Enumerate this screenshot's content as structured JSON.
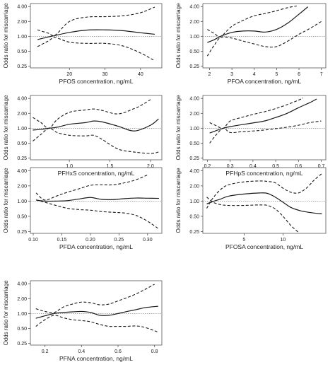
{
  "chart_data": [
    {
      "type": "line",
      "xlabel": "PFOS concentration, ng/mL",
      "ylabel": "Odds ratio for miscarriage",
      "xlim": [
        9,
        46
      ],
      "xticks": [
        20,
        30,
        40
      ],
      "ylim": [
        0.23,
        4.6
      ],
      "yticks": [
        0.25,
        0.5,
        1.0,
        2.0,
        4.0
      ],
      "y_scale": "log",
      "reference_y": 1.0,
      "series": [
        {
          "role": "estimate",
          "style": "solid",
          "x": [
            11,
            14,
            16,
            20,
            25,
            30,
            35,
            40,
            44
          ],
          "y": [
            0.86,
            0.97,
            1.04,
            1.2,
            1.34,
            1.35,
            1.3,
            1.18,
            1.1
          ]
        },
        {
          "role": "upper",
          "style": "dashed",
          "x": [
            11,
            14,
            16,
            20,
            25,
            30,
            35,
            40,
            44
          ],
          "y": [
            1.35,
            1.16,
            1.06,
            2.0,
            2.45,
            2.5,
            2.6,
            3.0,
            3.9
          ]
        },
        {
          "role": "lower",
          "style": "dashed",
          "x": [
            11,
            14,
            16,
            20,
            25,
            30,
            35,
            40,
            44
          ],
          "y": [
            0.62,
            0.8,
            0.94,
            0.76,
            0.72,
            0.72,
            0.64,
            0.46,
            0.32
          ]
        }
      ]
    },
    {
      "type": "line",
      "xlabel": "PFOA concentration, ng/mL",
      "ylabel": "Odds ratio for miscarriage",
      "xlim": [
        1.7,
        7.2
      ],
      "xticks": [
        2,
        3,
        4,
        5,
        6,
        7
      ],
      "ylim": [
        0.23,
        4.6
      ],
      "yticks": [
        0.25,
        0.5,
        1.0,
        2.0,
        4.0
      ],
      "y_scale": "log",
      "reference_y": 1.0,
      "series": [
        {
          "role": "estimate",
          "style": "solid",
          "x": [
            1.9,
            2.2,
            2.5,
            3.0,
            3.5,
            4.0,
            4.5,
            5.0,
            5.5,
            6.0,
            6.4
          ],
          "y": [
            0.75,
            0.85,
            1.0,
            1.2,
            1.28,
            1.28,
            1.22,
            1.38,
            1.85,
            2.8,
            3.95
          ]
        },
        {
          "role": "upper",
          "style": "dashed",
          "x": [
            1.9,
            2.2,
            2.5,
            3.0,
            3.5,
            4.0,
            4.5,
            5.0,
            5.5,
            5.9
          ],
          "y": [
            1.38,
            1.15,
            1.0,
            1.6,
            2.1,
            2.6,
            2.9,
            3.3,
            3.8,
            4.1
          ]
        },
        {
          "role": "lower",
          "style": "dashed",
          "x": [
            1.9,
            2.2,
            2.5,
            3.0,
            3.5,
            4.0,
            4.5,
            5.0,
            5.5,
            6.0,
            6.5,
            7.0
          ],
          "y": [
            0.4,
            0.65,
            0.95,
            0.92,
            0.8,
            0.7,
            0.62,
            0.62,
            0.8,
            1.1,
            1.45,
            2.0
          ]
        }
      ]
    },
    {
      "type": "line",
      "xlabel": "PFHxS concentration, ng/mL",
      "ylabel": "Odds ratio for miscarriage",
      "xlim": [
        0.52,
        2.14
      ],
      "xticks": [
        1.0,
        1.5,
        2.0
      ],
      "ylim": [
        0.23,
        4.6
      ],
      "yticks": [
        0.25,
        0.5,
        1.0,
        2.0,
        4.0
      ],
      "y_scale": "log",
      "reference_y": 1.0,
      "series": [
        {
          "role": "estimate",
          "style": "solid",
          "x": [
            0.55,
            0.65,
            0.75,
            0.85,
            1.0,
            1.2,
            1.3,
            1.4,
            1.6,
            1.8,
            2.0,
            2.1
          ],
          "y": [
            0.92,
            0.95,
            1.0,
            1.05,
            1.2,
            1.3,
            1.4,
            1.35,
            1.1,
            0.88,
            1.15,
            1.55
          ]
        },
        {
          "role": "upper",
          "style": "dashed",
          "x": [
            0.55,
            0.65,
            0.75,
            0.85,
            1.0,
            1.2,
            1.3,
            1.4,
            1.6,
            1.8,
            1.9,
            2.0
          ],
          "y": [
            1.65,
            1.3,
            1.0,
            1.5,
            2.1,
            2.35,
            2.45,
            2.3,
            1.95,
            2.5,
            3.0,
            3.8
          ]
        },
        {
          "role": "lower",
          "style": "dashed",
          "x": [
            0.55,
            0.65,
            0.75,
            0.85,
            1.0,
            1.2,
            1.3,
            1.4,
            1.6,
            1.8,
            2.0,
            2.1
          ],
          "y": [
            0.55,
            0.75,
            1.0,
            0.82,
            0.72,
            0.7,
            0.72,
            0.6,
            0.38,
            0.33,
            0.31,
            0.33
          ]
        }
      ]
    },
    {
      "type": "line",
      "xlabel": "PFHpS concentration, ng/mL",
      "ylabel": "Odds ratio for miscarriage",
      "xlim": [
        0.18,
        0.72
      ],
      "xticks": [
        0.2,
        0.3,
        0.4,
        0.5,
        0.6,
        0.7
      ],
      "ylim": [
        0.23,
        4.6
      ],
      "yticks": [
        0.25,
        0.5,
        1.0,
        2.0,
        4.0
      ],
      "y_scale": "log",
      "reference_y": 1.0,
      "series": [
        {
          "role": "estimate",
          "style": "solid",
          "x": [
            0.21,
            0.24,
            0.27,
            0.3,
            0.35,
            0.4,
            0.45,
            0.5,
            0.55,
            0.6,
            0.65,
            0.68
          ],
          "y": [
            0.8,
            0.9,
            1.0,
            1.08,
            1.18,
            1.28,
            1.4,
            1.65,
            2.0,
            2.6,
            3.3,
            3.9
          ]
        },
        {
          "role": "upper",
          "style": "dashed",
          "x": [
            0.21,
            0.24,
            0.27,
            0.3,
            0.35,
            0.4,
            0.45,
            0.5,
            0.55,
            0.6,
            0.62
          ],
          "y": [
            1.3,
            1.12,
            1.0,
            1.4,
            1.65,
            1.9,
            2.15,
            2.5,
            3.0,
            3.7,
            4.1
          ]
        },
        {
          "role": "lower",
          "style": "dashed",
          "x": [
            0.21,
            0.24,
            0.27,
            0.3,
            0.35,
            0.4,
            0.45,
            0.5,
            0.55,
            0.6,
            0.65,
            0.7
          ],
          "y": [
            0.5,
            0.75,
            1.0,
            0.82,
            0.85,
            0.88,
            0.92,
            0.98,
            1.05,
            1.15,
            1.3,
            1.4
          ]
        }
      ]
    },
    {
      "type": "line",
      "xlabel": "PFDA concentration, ng/mL",
      "ylabel": "Odds ratio for miscarriage",
      "xlim": [
        0.095,
        0.325
      ],
      "xticks": [
        0.1,
        0.15,
        0.2,
        0.25,
        0.3
      ],
      "ylim": [
        0.23,
        4.6
      ],
      "yticks": [
        0.25,
        0.5,
        1.0,
        2.0,
        4.0
      ],
      "y_scale": "log",
      "reference_y": 1.0,
      "series": [
        {
          "role": "estimate",
          "style": "solid",
          "x": [
            0.105,
            0.12,
            0.14,
            0.16,
            0.18,
            0.2,
            0.22,
            0.24,
            0.26,
            0.28,
            0.3,
            0.32
          ],
          "y": [
            1.05,
            1.0,
            1.0,
            1.02,
            1.1,
            1.18,
            1.08,
            1.07,
            1.12,
            1.15,
            1.14,
            1.13
          ]
        },
        {
          "role": "upper",
          "style": "dashed",
          "x": [
            0.105,
            0.12,
            0.14,
            0.16,
            0.18,
            0.2,
            0.22,
            0.24,
            0.26,
            0.28,
            0.3
          ],
          "y": [
            1.45,
            1.05,
            1.25,
            1.5,
            1.75,
            2.05,
            2.1,
            2.1,
            2.3,
            2.65,
            3.3
          ]
        },
        {
          "role": "lower",
          "style": "dashed",
          "x": [
            0.105,
            0.12,
            0.14,
            0.16,
            0.18,
            0.2,
            0.22,
            0.24,
            0.26,
            0.28,
            0.3,
            0.32
          ],
          "y": [
            1.05,
            0.95,
            0.82,
            0.72,
            0.68,
            0.66,
            0.62,
            0.6,
            0.58,
            0.52,
            0.4,
            0.28
          ]
        }
      ]
    },
    {
      "type": "line",
      "xlabel": "PFOSA concentration, ng/mL",
      "ylabel": "Odds ratio for miscarriage",
      "xlim": [
        -0.3,
        15.5
      ],
      "xticks": [
        5,
        10
      ],
      "ylim": [
        0.23,
        4.6
      ],
      "yticks": [
        0.25,
        0.5,
        1.0,
        2.0,
        4.0
      ],
      "y_scale": "log",
      "reference_y": 1.0,
      "series": [
        {
          "role": "estimate",
          "style": "solid",
          "x": [
            0.2,
            1,
            2,
            3,
            5,
            7,
            8,
            9,
            10,
            11,
            12,
            13,
            14,
            15
          ],
          "y": [
            0.88,
            0.98,
            1.1,
            1.25,
            1.38,
            1.45,
            1.42,
            1.2,
            0.95,
            0.75,
            0.66,
            0.61,
            0.58,
            0.56
          ]
        },
        {
          "role": "upper",
          "style": "dashed",
          "x": [
            0.2,
            1,
            2,
            3,
            5,
            7,
            8,
            9,
            10,
            11,
            12,
            13,
            14,
            15
          ],
          "y": [
            0.72,
            1.15,
            1.7,
            2.1,
            2.4,
            2.5,
            2.45,
            2.3,
            1.8,
            1.5,
            1.45,
            1.8,
            2.6,
            3.5
          ]
        },
        {
          "role": "lower",
          "style": "dashed",
          "x": [
            0.2,
            1,
            2,
            3,
            5,
            7,
            8,
            9,
            10,
            11,
            12
          ],
          "y": [
            1.2,
            0.95,
            0.85,
            0.82,
            0.82,
            0.84,
            0.82,
            0.7,
            0.5,
            0.33,
            0.24
          ]
        }
      ]
    },
    {
      "type": "line",
      "xlabel": "PFNA concentration, ng/mL",
      "ylabel": "Odds ratio for miscarriage",
      "xlim": [
        0.12,
        0.84
      ],
      "xticks": [
        0.2,
        0.4,
        0.6,
        0.8
      ],
      "ylim": [
        0.23,
        4.6
      ],
      "yticks": [
        0.25,
        0.5,
        1.0,
        2.0,
        4.0
      ],
      "y_scale": "log",
      "reference_y": 1.0,
      "series": [
        {
          "role": "estimate",
          "style": "solid",
          "x": [
            0.15,
            0.2,
            0.25,
            0.3,
            0.35,
            0.4,
            0.45,
            0.5,
            0.55,
            0.6,
            0.65,
            0.7,
            0.75,
            0.82
          ],
          "y": [
            0.8,
            0.9,
            1.0,
            1.05,
            1.08,
            1.1,
            1.05,
            0.92,
            0.92,
            1.0,
            1.1,
            1.2,
            1.32,
            1.4
          ]
        },
        {
          "role": "upper",
          "style": "dashed",
          "x": [
            0.15,
            0.2,
            0.25,
            0.3,
            0.35,
            0.4,
            0.45,
            0.5,
            0.55,
            0.6,
            0.65,
            0.7,
            0.75,
            0.8
          ],
          "y": [
            1.25,
            1.1,
            1.05,
            1.35,
            1.55,
            1.7,
            1.65,
            1.5,
            1.55,
            1.8,
            2.1,
            2.5,
            3.1,
            3.9
          ]
        },
        {
          "role": "lower",
          "style": "dashed",
          "x": [
            0.15,
            0.2,
            0.25,
            0.3,
            0.35,
            0.4,
            0.45,
            0.5,
            0.55,
            0.6,
            0.65,
            0.7,
            0.75,
            0.82
          ],
          "y": [
            0.55,
            0.75,
            0.92,
            0.82,
            0.75,
            0.72,
            0.68,
            0.6,
            0.55,
            0.55,
            0.55,
            0.56,
            0.52,
            0.42
          ]
        }
      ]
    }
  ]
}
